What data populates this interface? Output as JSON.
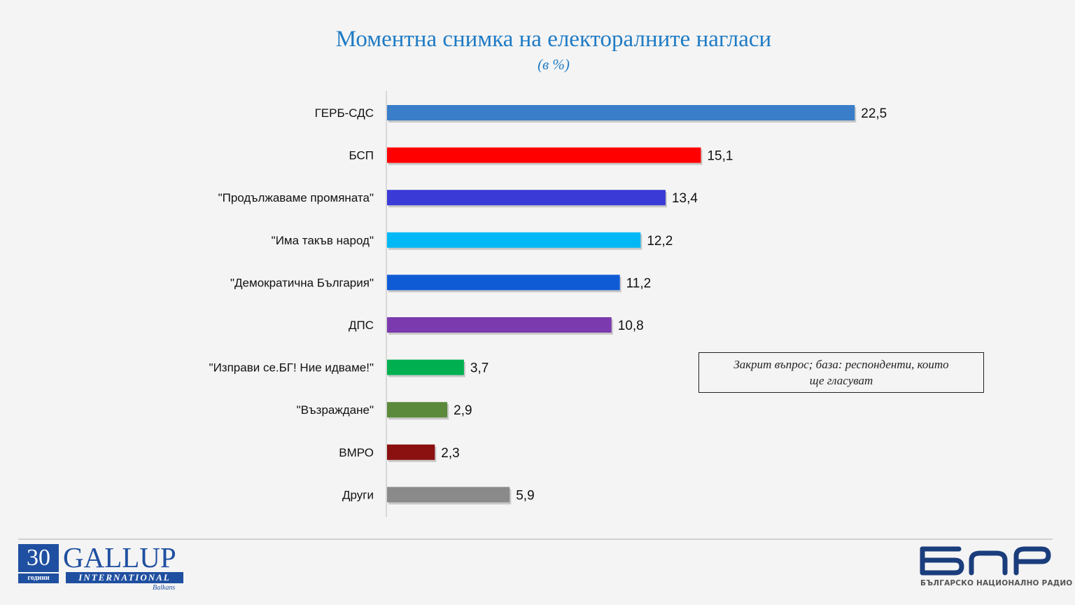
{
  "chart_data": {
    "type": "bar",
    "orientation": "horizontal",
    "title": "Моментна снимка на електоралните нагласи",
    "subtitle": "(в %)",
    "categories": [
      "ГЕРБ-СДС",
      "БСП",
      "\"Продължаваме промяната\"",
      "\"Има такъв народ\"",
      "\"Демократична България\"",
      "ДПС",
      "\"Изправи се.БГ! Ние идваме!\"",
      "\"Възраждане\"",
      "ВМРО",
      "Други"
    ],
    "values": [
      22.5,
      15.1,
      13.4,
      12.2,
      11.2,
      10.8,
      3.7,
      2.9,
      2.3,
      5.9
    ],
    "value_labels": [
      "22,5",
      "15,1",
      "13,4",
      "12,2",
      "11,2",
      "10,8",
      "3,7",
      "2,9",
      "2,3",
      "5,9"
    ],
    "colors": [
      "#3a7dc8",
      "#ff0000",
      "#3a3ad6",
      "#00b8f5",
      "#0f5bd6",
      "#7b3aad",
      "#00b050",
      "#5b8a3c",
      "#8b1010",
      "#8a8a8a"
    ],
    "xlim": [
      0,
      25
    ],
    "grid": false,
    "legend": "none"
  },
  "note": {
    "line1": "Закрит въпрос; база: респонденти, които",
    "line2": "ще гласуват"
  },
  "logos": {
    "gallup_years": "30",
    "gallup_years_word": "години",
    "gallup_name": "GALLUP",
    "gallup_international": "INTERNATIONAL",
    "gallup_region": "Balkans",
    "bnr_name": "БЪЛГАРСКО НАЦИОНАЛНО РАДИО",
    "brand_color": "#1f4fa0"
  }
}
